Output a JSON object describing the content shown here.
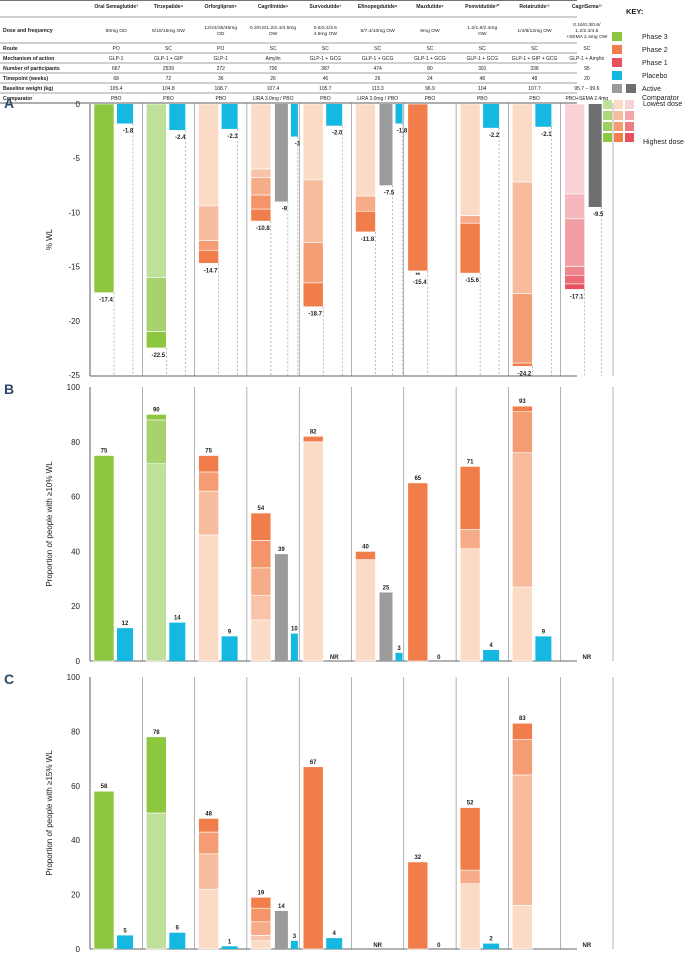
{
  "table": {
    "header_row": [
      "Oral Semaglutide³",
      "Tirzepatide⁴",
      "Orforglipron⁵",
      "Cagrilintide⁶",
      "Survodutide⁷",
      "Efinopegdutide⁸",
      "Mazdutide⁹",
      "Pemvidutide¹⁰",
      "Retatrutide¹¹",
      "CagriSema¹²"
    ],
    "rows": [
      {
        "label": "Dose and frequency",
        "cells": [
          "50mg OD",
          "5/10/15mg OW",
          "12/24/36/45mg OD",
          "0.3/0.6/1.2/2.4/4.5mg OW",
          "0.6/2.4/3.6 4.8mg OW",
          "5/7.4/10mg OW",
          "9mg OW",
          "1.2/1.8/2.4mg OW",
          "1/4/8/12mg OW",
          "0.16/0.3/0.6/ 1.2/2.4/4.5 +SEMA 2.4mg OW"
        ]
      },
      {
        "label": "Route",
        "cells": [
          "PO",
          "SC",
          "PO",
          "SC",
          "SC",
          "SC",
          "SC",
          "SC",
          "SC",
          "SC"
        ]
      },
      {
        "label": "Mechanism of action",
        "cells": [
          "GLP-1",
          "GLP-1 + GIP",
          "GLP-1",
          "Amylin",
          "GLP-1 + GCG",
          "GLP-1 + GCG",
          "GLP-1 + GCG",
          "GLP-1 + GCG",
          "GLP-1 + GIP + GCG",
          "GLP-1 + Amylin"
        ]
      },
      {
        "label": "Number of participants",
        "cells": [
          "667",
          "2539",
          "272",
          "706",
          "387",
          "474",
          "80",
          "391",
          "338",
          "95"
        ]
      },
      {
        "label": "Timepoint (weeks)",
        "cells": [
          "68",
          "72",
          "36",
          "26",
          "46",
          "26",
          "24",
          "48",
          "48",
          "20"
        ]
      },
      {
        "label": "Baseline weight (kg)",
        "cells": [
          "105.4",
          "104.8",
          "108.7",
          "107.4",
          "105.7",
          "113.3",
          "96.9",
          "104",
          "107.7",
          "95.7 – 99.6"
        ]
      },
      {
        "label": "Comparator",
        "cells": [
          "PBO",
          "PBO",
          "PBO",
          "LIRA 3.0mg / PBO",
          "PBO",
          "LIRA 3.0mg / PBO",
          "PBO",
          "PBO",
          "PBO",
          "PBO+SEMA 2.4mg"
        ]
      }
    ]
  },
  "key": {
    "title": "KEY:",
    "items": [
      "Phase 3",
      "Phase 2",
      "Phase 1",
      "Placebo",
      "Active Comparator"
    ],
    "lowest_dose": "Lowest dose",
    "highest_dose": "Highest dose"
  },
  "colors": {
    "phase3": "#8dc63f",
    "phase3_light": "#bfe09a",
    "phase2": "#f07d4a",
    "phase2_light": "#f7b48f",
    "phase2_pale": "#fbdac6",
    "phase1": "#e8505b",
    "phase1_light": "#f09aa2",
    "phase1_pale": "#f8d2d6",
    "placebo": "#14b8e0",
    "comparator": "#9b9b9b",
    "comparator_dark": "#6d6e70"
  },
  "chart_data": [
    {
      "panel": "A",
      "type": "bar",
      "ylabel": "% WL",
      "ylim": [
        -25,
        0
      ],
      "yticks": [
        "0",
        "-5",
        "-10",
        "-15",
        "-20",
        "-25"
      ],
      "groups": [
        {
          "drug": "Oral Semaglutide",
          "treatment": {
            "phase": "phase3",
            "dose_values": [
              -17.4
            ],
            "label": "-17.4"
          },
          "placebo": {
            "value": -1.8,
            "label": "-1.8"
          }
        },
        {
          "drug": "Tirzepatide",
          "treatment": {
            "phase": "phase3",
            "dose_values": [
              -16.0,
              -21.0,
              -22.5
            ],
            "label": "-22.5"
          },
          "placebo": {
            "value": -2.4,
            "label": "-2.4"
          }
        },
        {
          "drug": "Orforglipron",
          "treatment": {
            "phase": "phase2",
            "dose_values": [
              -9.4,
              -12.6,
              -13.5,
              -14.7
            ],
            "label": "-14.7"
          },
          "placebo": {
            "value": -2.3,
            "label": "-2.3"
          }
        },
        {
          "drug": "Cagrilintide",
          "treatment": {
            "phase": "phase2",
            "dose_values": [
              -6.0,
              -6.8,
              -8.4,
              -9.7,
              -10.8
            ],
            "label": "-10.8"
          },
          "comparator": {
            "value": -9.0,
            "label": "-9"
          },
          "placebo": {
            "value": -3.0,
            "label": "-3"
          }
        },
        {
          "drug": "Survodutide",
          "treatment": {
            "phase": "phase2",
            "dose_values": [
              -7.0,
              -12.8,
              -16.5,
              -18.7
            ],
            "label": "-18.7"
          },
          "placebo": {
            "value": -2.0,
            "label": "-2.0"
          }
        },
        {
          "drug": "Efinopegdutide",
          "treatment": {
            "phase": "phase2",
            "dose_values": [
              -8.5,
              -9.9,
              -11.8
            ],
            "label": "-11.8"
          },
          "comparator": {
            "value": -7.5,
            "label": "-7.5"
          },
          "placebo": {
            "value": -1.8,
            "label": "-1.8"
          }
        },
        {
          "drug": "Mazdutide",
          "treatment": {
            "phase": "phase2",
            "dose_values": [
              -15.4
            ],
            "label": "-15.4"
          },
          "placebo": null,
          "annotation": "**"
        },
        {
          "drug": "Pemvidutide",
          "treatment": {
            "phase": "phase2",
            "dose_values": [
              -10.3,
              -11.0,
              -15.6
            ],
            "label": "-15.6"
          },
          "placebo": {
            "value": -2.2,
            "label": "-2.2"
          }
        },
        {
          "drug": "Retatrutide",
          "treatment": {
            "phase": "phase2",
            "dose_values": [
              -7.2,
              -17.5,
              -23.9,
              -24.2
            ],
            "label": "-24.2"
          },
          "placebo": {
            "value": -2.1,
            "label": "-2.1"
          }
        },
        {
          "drug": "CagriSema",
          "treatment": {
            "phase": "phase1",
            "dose_values": [
              -8.3,
              -10.6,
              -15.0,
              -15.8,
              -16.6,
              -17.1
            ],
            "label": "-17.1"
          },
          "comparator": {
            "value": -9.5,
            "label": "-9.5"
          },
          "placebo": null
        }
      ]
    },
    {
      "panel": "B",
      "type": "bar",
      "ylabel": "Proportion of people with ≥10% WL",
      "ylim": [
        0,
        100
      ],
      "yticks": [
        "100",
        "80",
        "60",
        "40",
        "20",
        "0"
      ],
      "groups": [
        {
          "drug": "Oral Semaglutide",
          "treatment": {
            "phase": "phase3",
            "dose_values": [
              75
            ],
            "label": "75"
          },
          "placebo": {
            "value": 12,
            "label": "12"
          }
        },
        {
          "drug": "Tirzepatide",
          "treatment": {
            "phase": "phase3",
            "dose_values": [
              72,
              88,
              90
            ],
            "label": "90"
          },
          "placebo": {
            "value": 14,
            "label": "14"
          }
        },
        {
          "drug": "Orforglipron",
          "treatment": {
            "phase": "phase2",
            "dose_values": [
              46,
              62,
              69,
              75
            ],
            "label": "75"
          },
          "placebo": {
            "value": 9,
            "label": "9"
          }
        },
        {
          "drug": "Cagrilintide",
          "treatment": {
            "phase": "phase2",
            "dose_values": [
              15,
              24,
              34,
              44,
              54
            ],
            "label": "54"
          },
          "comparator": {
            "value": 39,
            "label": "39"
          },
          "placebo": {
            "value": 10,
            "label": "10"
          }
        },
        {
          "drug": "Survodutide",
          "treatment": {
            "phase": "phase2",
            "dose_values": [
              80,
              82
            ],
            "label": "82"
          },
          "placebo": {
            "value": 0,
            "label": "NR"
          }
        },
        {
          "drug": "Efinopegdutide",
          "treatment": {
            "phase": "phase2",
            "dose_values": [
              37,
              40
            ],
            "label": "40"
          },
          "comparator": {
            "value": 25,
            "label": "25"
          },
          "placebo": {
            "value": 3,
            "label": "3"
          }
        },
        {
          "drug": "Mazdutide",
          "treatment": {
            "phase": "phase2",
            "dose_values": [
              65
            ],
            "label": "65"
          },
          "placebo": {
            "value": 0,
            "label": "0"
          }
        },
        {
          "drug": "Pemvidutide",
          "treatment": {
            "phase": "phase2",
            "dose_values": [
              41,
              48,
              71
            ],
            "label": "71"
          },
          "placebo": {
            "value": 4,
            "label": "4"
          }
        },
        {
          "drug": "Retatrutide",
          "treatment": {
            "phase": "phase2",
            "dose_values": [
              27,
              76,
              91,
              93
            ],
            "label": "93"
          },
          "placebo": {
            "value": 9,
            "label": "9"
          }
        },
        {
          "drug": "CagriSema",
          "treatment": null,
          "nr_label": "NR"
        }
      ]
    },
    {
      "panel": "C",
      "type": "bar",
      "ylabel": "Proportion of people with ≥15% WL",
      "ylim": [
        0,
        100
      ],
      "yticks": [
        "100",
        "80",
        "60",
        "40",
        "20",
        "0"
      ],
      "groups": [
        {
          "drug": "Oral Semaglutide",
          "treatment": {
            "phase": "phase3",
            "dose_values": [
              58
            ],
            "label": "58"
          },
          "placebo": {
            "value": 5,
            "label": "5"
          }
        },
        {
          "drug": "Tirzepatide",
          "treatment": {
            "phase": "phase3",
            "dose_values": [
              50,
              78
            ],
            "label": "78"
          },
          "placebo": {
            "value": 6,
            "label": "6"
          }
        },
        {
          "drug": "Orforglipron",
          "treatment": {
            "phase": "phase2",
            "dose_values": [
              22,
              35,
              43,
              48
            ],
            "label": "48"
          },
          "placebo": {
            "value": 1,
            "label": "1"
          }
        },
        {
          "drug": "Cagrilintide",
          "treatment": {
            "phase": "phase2",
            "dose_values": [
              3,
              5,
              10,
              15,
              19
            ],
            "label": "19"
          },
          "comparator": {
            "value": 14,
            "label": "14"
          },
          "placebo": {
            "value": 3,
            "label": "3"
          }
        },
        {
          "drug": "Survodutide",
          "treatment": {
            "phase": "phase2",
            "dose_values": [
              67
            ],
            "label": "67"
          },
          "placebo": {
            "value": 4,
            "label": "4"
          }
        },
        {
          "drug": "Efinopegdutide",
          "treatment": null,
          "nr_label": "NR"
        },
        {
          "drug": "Mazdutide",
          "treatment": {
            "phase": "phase2",
            "dose_values": [
              32
            ],
            "label": "32"
          },
          "placebo": {
            "value": 0,
            "label": "0"
          }
        },
        {
          "drug": "Pemvidutide",
          "treatment": {
            "phase": "phase2",
            "dose_values": [
              24,
              29,
              52
            ],
            "label": "52"
          },
          "placebo": {
            "value": 2,
            "label": "2"
          }
        },
        {
          "drug": "Retatrutide",
          "treatment": {
            "phase": "phase2",
            "dose_values": [
              16,
              64,
              77,
              83
            ],
            "label": "83"
          },
          "placebo": {
            "value": 0,
            "label": ""
          }
        },
        {
          "drug": "CagriSema",
          "treatment": null,
          "nr_label": "NR"
        }
      ]
    }
  ]
}
